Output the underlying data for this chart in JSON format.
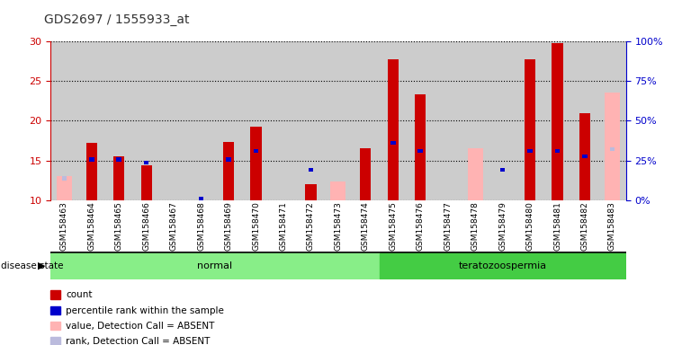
{
  "title": "GDS2697 / 1555933_at",
  "samples": [
    "GSM158463",
    "GSM158464",
    "GSM158465",
    "GSM158466",
    "GSM158467",
    "GSM158468",
    "GSM158469",
    "GSM158470",
    "GSM158471",
    "GSM158472",
    "GSM158473",
    "GSM158474",
    "GSM158475",
    "GSM158476",
    "GSM158477",
    "GSM158478",
    "GSM158479",
    "GSM158480",
    "GSM158481",
    "GSM158482",
    "GSM158483"
  ],
  "count": [
    null,
    17.2,
    15.5,
    14.4,
    null,
    null,
    17.3,
    19.2,
    null,
    12.0,
    null,
    16.5,
    27.8,
    23.3,
    null,
    null,
    null,
    27.8,
    29.8,
    21.0,
    null
  ],
  "percentile": [
    null,
    15.1,
    15.1,
    14.7,
    null,
    10.2,
    15.1,
    16.2,
    null,
    13.8,
    null,
    null,
    17.2,
    16.2,
    null,
    null,
    13.8,
    16.2,
    16.2,
    15.5,
    null
  ],
  "absent_value": [
    13.0,
    null,
    null,
    null,
    null,
    null,
    null,
    null,
    null,
    null,
    12.3,
    null,
    null,
    null,
    null,
    16.5,
    null,
    null,
    null,
    null,
    23.5
  ],
  "absent_rank": [
    13.8,
    null,
    null,
    null,
    null,
    null,
    null,
    null,
    null,
    null,
    null,
    null,
    null,
    null,
    null,
    null,
    null,
    null,
    null,
    null,
    32.0
  ],
  "disease_state": [
    "normal",
    "normal",
    "normal",
    "normal",
    "normal",
    "normal",
    "normal",
    "normal",
    "normal",
    "normal",
    "normal",
    "normal",
    "teratozoospermia",
    "teratozoospermia",
    "teratozoospermia",
    "teratozoospermia",
    "teratozoospermia",
    "teratozoospermia",
    "teratozoospermia",
    "teratozoospermia",
    "teratozoospermia"
  ],
  "ylim_left": [
    10,
    30
  ],
  "ylim_right": [
    0,
    100
  ],
  "yticks_left": [
    10,
    15,
    20,
    25,
    30
  ],
  "yticks_right": [
    0,
    25,
    50,
    75,
    100
  ],
  "count_color": "#cc0000",
  "percentile_color": "#0000cc",
  "absent_value_color": "#ffb3b3",
  "absent_rank_color": "#bbbbdd",
  "normal_color": "#88ee88",
  "terato_color": "#44cc44",
  "col_bg_color": "#cccccc",
  "legend_items": [
    {
      "label": "count",
      "color": "#cc0000"
    },
    {
      "label": "percentile rank within the sample",
      "color": "#0000cc"
    },
    {
      "label": "value, Detection Call = ABSENT",
      "color": "#ffb3b3"
    },
    {
      "label": "rank, Detection Call = ABSENT",
      "color": "#bbbbdd"
    }
  ]
}
